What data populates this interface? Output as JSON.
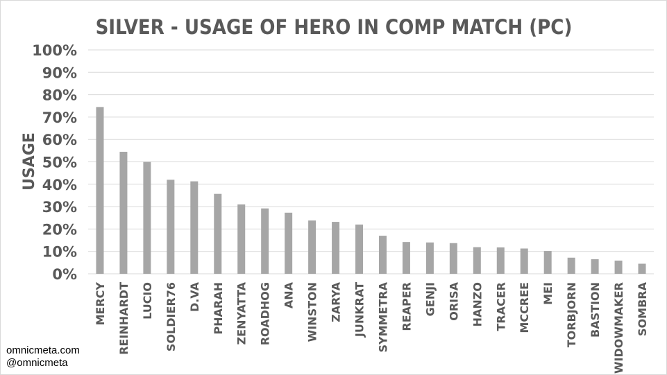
{
  "chart_data": {
    "type": "bar",
    "title": "SILVER - USAGE OF HERO IN COMP MATCH (PC)",
    "xlabel": "",
    "ylabel": "USAGE",
    "ylim": [
      0,
      100
    ],
    "yticks": [
      "0%",
      "10%",
      "20%",
      "30%",
      "40%",
      "50%",
      "60%",
      "70%",
      "80%",
      "90%",
      "100%"
    ],
    "grid": true,
    "legend": "none",
    "categories": [
      "MERCY",
      "REINHARDT",
      "LUCIO",
      "SOLDIER76",
      "D.VA",
      "PHARAH",
      "ZENYATTA",
      "ROADHOG",
      "ANA",
      "WINSTON",
      "ZARYA",
      "JUNKRAT",
      "SYMMETRA",
      "REAPER",
      "GENJI",
      "ORISA",
      "HANZO",
      "TRACER",
      "MCCREE",
      "MEI",
      "TORBJORN",
      "BASTION",
      "WIDOWMAKER",
      "SOMBRA"
    ],
    "values": [
      74.5,
      54.5,
      50,
      42,
      41.3,
      35.7,
      31,
      29.2,
      27.3,
      23.8,
      23.2,
      22,
      17,
      14.2,
      14,
      13.7,
      11.9,
      11.8,
      11.3,
      10.2,
      7.2,
      6.5,
      5.9,
      4.5
    ],
    "bar_color": "#a6a6a6",
    "grid_color": "#d9d9d9",
    "text_color": "#595959"
  },
  "credits": {
    "site": "omnicmeta.com",
    "handle": "@omnicmeta"
  }
}
